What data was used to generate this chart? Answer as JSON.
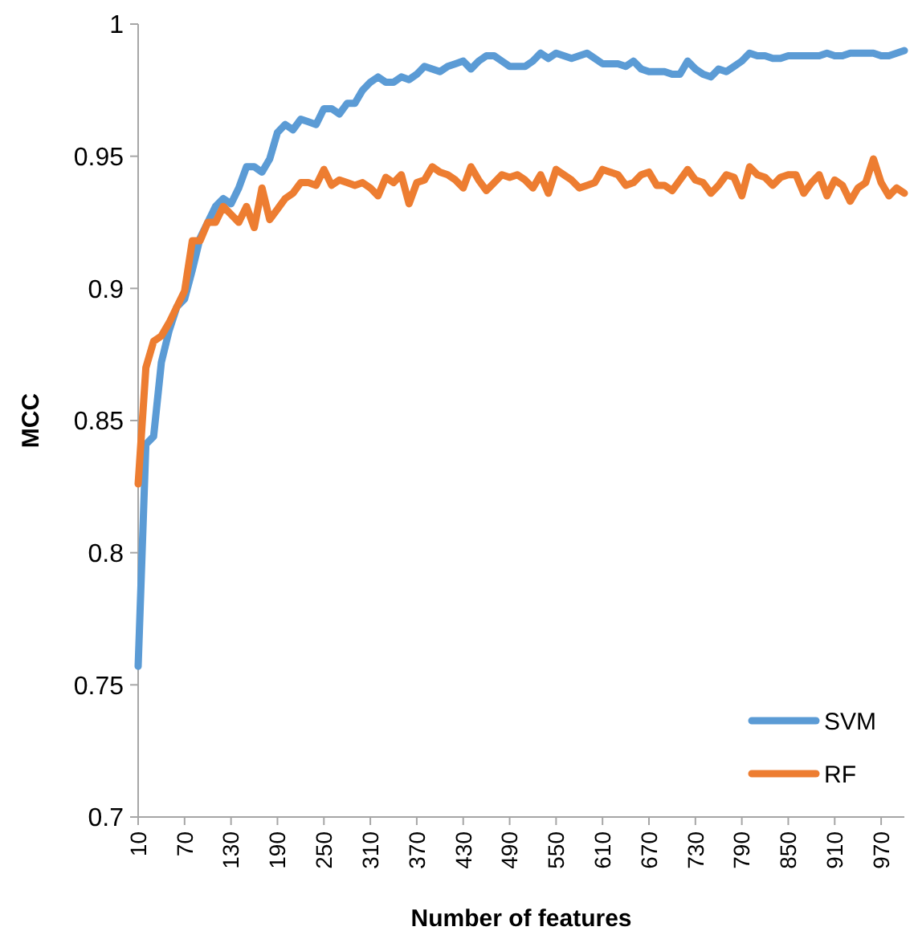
{
  "chart_data": {
    "type": "line",
    "xlabel": "Number of features",
    "ylabel": "MCC",
    "x": [
      10,
      20,
      30,
      40,
      50,
      60,
      70,
      80,
      90,
      100,
      110,
      120,
      130,
      140,
      150,
      160,
      170,
      180,
      190,
      200,
      210,
      220,
      230,
      240,
      250,
      260,
      270,
      280,
      290,
      300,
      310,
      320,
      330,
      340,
      350,
      360,
      370,
      380,
      390,
      400,
      410,
      420,
      430,
      440,
      450,
      460,
      470,
      480,
      490,
      500,
      510,
      520,
      530,
      540,
      550,
      560,
      570,
      580,
      590,
      600,
      610,
      620,
      630,
      640,
      650,
      660,
      670,
      680,
      690,
      700,
      710,
      720,
      730,
      740,
      750,
      760,
      770,
      780,
      790,
      800,
      810,
      820,
      830,
      840,
      850,
      860,
      870,
      880,
      890,
      900,
      910,
      920,
      930,
      940,
      950,
      960,
      970,
      980,
      990,
      1000
    ],
    "xlim": [
      10,
      1000
    ],
    "xticks": [
      10,
      70,
      130,
      190,
      250,
      310,
      370,
      430,
      490,
      550,
      610,
      670,
      730,
      790,
      850,
      910,
      970
    ],
    "ylim": [
      0.7,
      1
    ],
    "yticks": [
      0.7,
      0.75,
      0.8,
      0.85,
      0.9,
      0.95,
      1
    ],
    "grid": false,
    "legend": "bottom right",
    "marker": "none",
    "line_style": "solid",
    "series": [
      {
        "name": "SVM",
        "color": "#5b9bd5",
        "values": [
          0.757,
          0.841,
          0.844,
          0.872,
          0.884,
          0.893,
          0.896,
          0.907,
          0.919,
          0.925,
          0.931,
          0.934,
          0.932,
          0.938,
          0.946,
          0.946,
          0.944,
          0.949,
          0.959,
          0.962,
          0.96,
          0.964,
          0.963,
          0.962,
          0.968,
          0.968,
          0.966,
          0.97,
          0.97,
          0.975,
          0.978,
          0.98,
          0.978,
          0.978,
          0.98,
          0.979,
          0.981,
          0.984,
          0.983,
          0.982,
          0.984,
          0.985,
          0.986,
          0.983,
          0.986,
          0.988,
          0.988,
          0.986,
          0.984,
          0.984,
          0.984,
          0.986,
          0.989,
          0.987,
          0.989,
          0.988,
          0.987,
          0.988,
          0.989,
          0.987,
          0.985,
          0.985,
          0.985,
          0.984,
          0.986,
          0.983,
          0.982,
          0.982,
          0.982,
          0.981,
          0.981,
          0.986,
          0.983,
          0.981,
          0.98,
          0.983,
          0.982,
          0.984,
          0.986,
          0.989,
          0.988,
          0.988,
          0.987,
          0.987,
          0.988,
          0.988,
          0.988,
          0.988,
          0.988,
          0.989,
          0.988,
          0.988,
          0.989,
          0.989,
          0.989,
          0.989,
          0.988,
          0.988,
          0.989,
          0.99
        ]
      },
      {
        "name": "RF",
        "color": "#ed7d31",
        "values": [
          0.826,
          0.87,
          0.88,
          0.882,
          0.887,
          0.893,
          0.899,
          0.918,
          0.918,
          0.925,
          0.925,
          0.931,
          0.928,
          0.925,
          0.931,
          0.923,
          0.938,
          0.926,
          0.93,
          0.934,
          0.936,
          0.94,
          0.94,
          0.939,
          0.945,
          0.939,
          0.941,
          0.94,
          0.939,
          0.94,
          0.938,
          0.935,
          0.942,
          0.94,
          0.943,
          0.932,
          0.94,
          0.941,
          0.946,
          0.944,
          0.943,
          0.941,
          0.938,
          0.946,
          0.941,
          0.937,
          0.94,
          0.943,
          0.942,
          0.943,
          0.941,
          0.938,
          0.943,
          0.936,
          0.945,
          0.943,
          0.941,
          0.938,
          0.939,
          0.94,
          0.945,
          0.944,
          0.943,
          0.939,
          0.94,
          0.943,
          0.944,
          0.939,
          0.939,
          0.937,
          0.941,
          0.945,
          0.941,
          0.94,
          0.936,
          0.939,
          0.943,
          0.942,
          0.935,
          0.946,
          0.943,
          0.942,
          0.939,
          0.942,
          0.943,
          0.943,
          0.936,
          0.94,
          0.943,
          0.935,
          0.941,
          0.939,
          0.933,
          0.938,
          0.94,
          0.949,
          0.94,
          0.935,
          0.938,
          0.936
        ]
      }
    ]
  }
}
